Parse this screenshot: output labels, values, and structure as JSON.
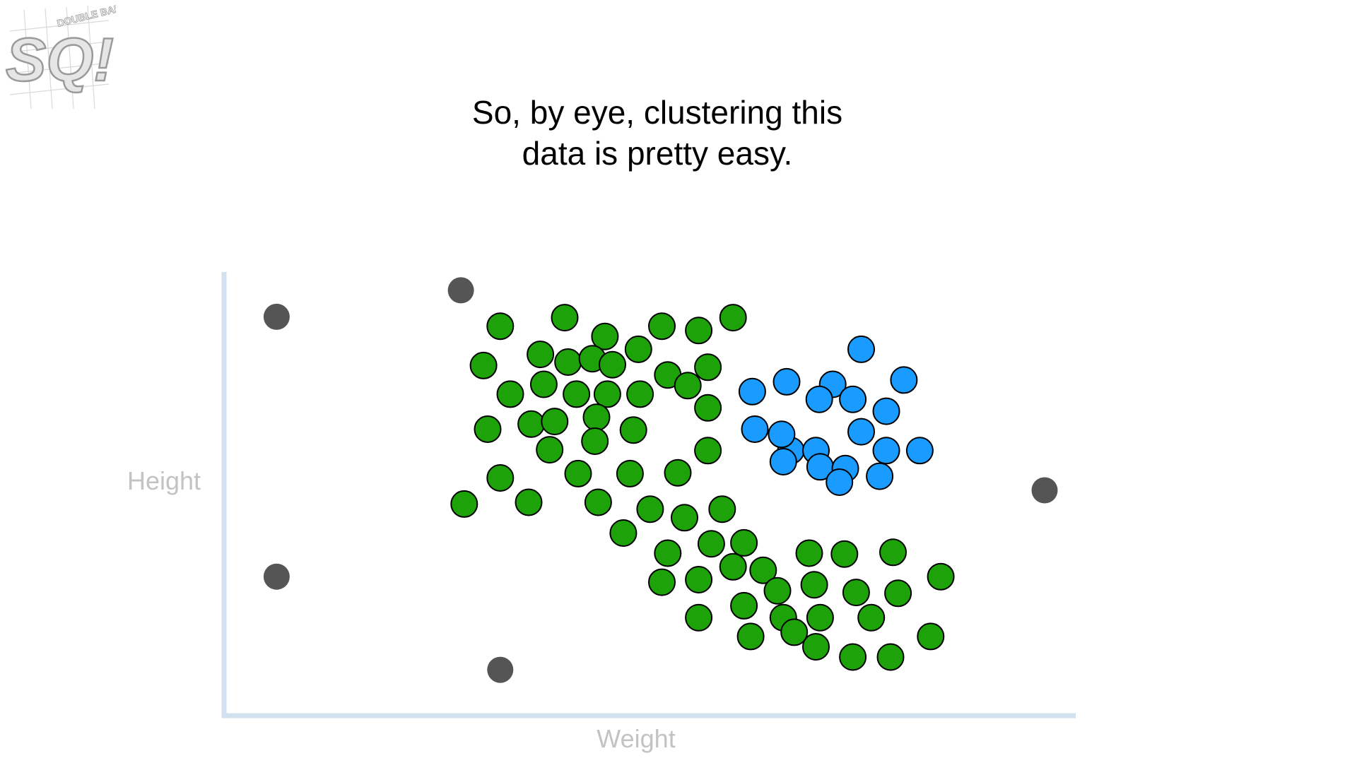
{
  "caption": {
    "line1": "So, by eye, clustering this",
    "line2": "data is pretty easy."
  },
  "logo": {
    "icon": "statquest-double-bam-logo",
    "text_large": "SQ!",
    "text_small": "DOUBLE BAM!!!"
  },
  "colors": {
    "green_cluster": "#1ea20a",
    "blue_cluster": "#1a9bff",
    "outlier": "#555555",
    "axis": "#d2e1ef",
    "axis_label": "#c3c3c3"
  },
  "chart_data": {
    "type": "scatter",
    "xlabel": "Weight",
    "ylabel": "Height",
    "xlim": [
      0,
      100
    ],
    "ylim": [
      0,
      100
    ],
    "grid": false,
    "tick_labels": false,
    "series": [
      {
        "color": "#1ea20a",
        "points": [
          [
            32.3,
            89.8
          ],
          [
            40.0,
            91.8
          ],
          [
            44.8,
            87.4
          ],
          [
            51.6,
            89.8
          ],
          [
            56.0,
            88.8
          ],
          [
            60.1,
            91.8
          ],
          [
            37.1,
            83.2
          ],
          [
            40.4,
            81.4
          ],
          [
            43.3,
            82.2
          ],
          [
            45.7,
            80.8
          ],
          [
            48.8,
            84.4
          ],
          [
            52.3,
            78.4
          ],
          [
            57.1,
            80.2
          ],
          [
            30.3,
            80.6
          ],
          [
            33.5,
            73.9
          ],
          [
            37.5,
            76.2
          ],
          [
            41.4,
            73.9
          ],
          [
            45.1,
            73.9
          ],
          [
            49.0,
            73.9
          ],
          [
            54.7,
            75.9
          ],
          [
            57.1,
            70.7
          ],
          [
            36.0,
            66.9
          ],
          [
            38.8,
            67.5
          ],
          [
            43.8,
            68.5
          ],
          [
            30.8,
            65.7
          ],
          [
            38.2,
            60.9
          ],
          [
            43.6,
            62.9
          ],
          [
            48.2,
            65.5
          ],
          [
            57.1,
            60.7
          ],
          [
            41.6,
            55.3
          ],
          [
            47.8,
            55.3
          ],
          [
            53.5,
            55.5
          ],
          [
            32.3,
            54.3
          ],
          [
            28.0,
            48.2
          ],
          [
            35.7,
            48.6
          ],
          [
            44.0,
            48.6
          ],
          [
            50.2,
            47.0
          ],
          [
            54.3,
            45.0
          ],
          [
            58.8,
            47.0
          ],
          [
            47.0,
            41.4
          ],
          [
            52.3,
            36.7
          ],
          [
            57.5,
            38.9
          ],
          [
            61.4,
            39.1
          ],
          [
            51.6,
            29.9
          ],
          [
            56.0,
            30.5
          ],
          [
            60.1,
            33.5
          ],
          [
            63.7,
            32.7
          ],
          [
            65.4,
            27.9
          ],
          [
            69.2,
            36.7
          ],
          [
            73.4,
            36.5
          ],
          [
            79.2,
            36.9
          ],
          [
            69.8,
            29.3
          ],
          [
            74.8,
            27.5
          ],
          [
            79.8,
            27.3
          ],
          [
            84.9,
            31.2
          ],
          [
            56.0,
            21.6
          ],
          [
            61.4,
            24.4
          ],
          [
            66.1,
            21.6
          ],
          [
            70.5,
            21.6
          ],
          [
            76.6,
            21.6
          ],
          [
            62.2,
            17.2
          ],
          [
            67.4,
            18.2
          ],
          [
            70.0,
            14.8
          ],
          [
            74.4,
            12.4
          ],
          [
            78.9,
            12.4
          ],
          [
            83.7,
            17.2
          ]
        ]
      },
      {
        "color": "#1a9bff",
        "points": [
          [
            75.4,
            84.4
          ],
          [
            72.0,
            76.2
          ],
          [
            80.5,
            77.2
          ],
          [
            66.5,
            76.8
          ],
          [
            70.4,
            72.7
          ],
          [
            74.4,
            72.7
          ],
          [
            78.4,
            69.9
          ],
          [
            62.7,
            65.7
          ],
          [
            67.0,
            60.7
          ],
          [
            70.0,
            60.7
          ],
          [
            75.4,
            65.1
          ],
          [
            78.4,
            60.7
          ],
          [
            82.4,
            60.7
          ],
          [
            66.1,
            58.1
          ],
          [
            70.5,
            56.9
          ],
          [
            73.5,
            56.5
          ],
          [
            77.6,
            54.7
          ],
          [
            72.8,
            53.3
          ],
          [
            65.9,
            64.5
          ],
          [
            62.4,
            74.5
          ]
        ]
      },
      {
        "color": "#555555",
        "points": [
          [
            5.6,
            92.0
          ],
          [
            5.6,
            31.2
          ],
          [
            27.6,
            98.2
          ],
          [
            32.3,
            9.4
          ],
          [
            97.3,
            51.4
          ]
        ]
      }
    ]
  }
}
